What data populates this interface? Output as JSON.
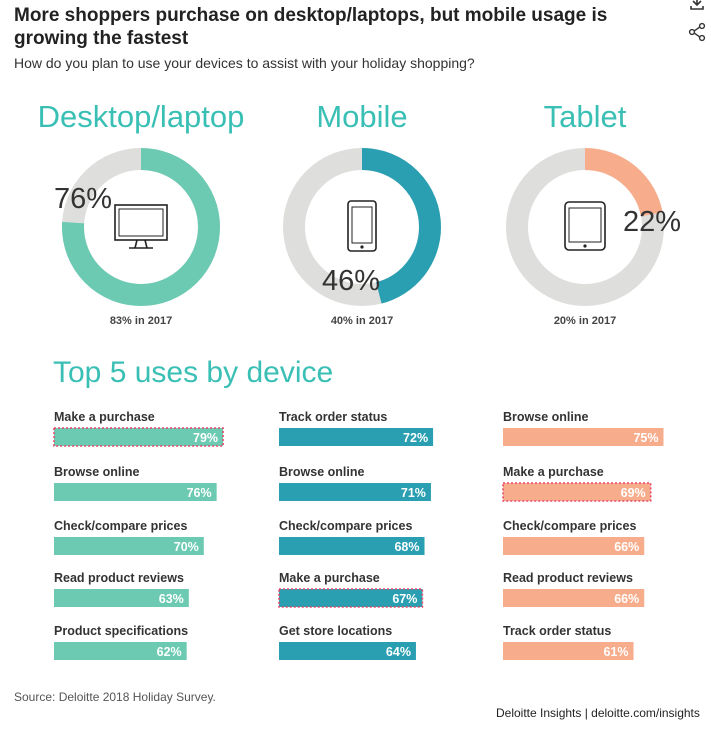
{
  "header": {
    "title": "More shoppers purchase on desktop/laptops, but mobile usage is growing the fastest",
    "subtitle": "How do you plan to use your devices to assist with your holiday shopping?",
    "icons": [
      "download-icon",
      "share-icon"
    ]
  },
  "colors": {
    "desktop": "#6ccab2",
    "mobile": "#2a9fb2",
    "tablet": "#f7ad8c",
    "donut_track": "#dededc",
    "heading": "#3abfb5",
    "highlight_outline": "#e8476a"
  },
  "chart_data": [
    {
      "type": "pie",
      "variant": "donut",
      "title": "Desktop/laptop",
      "value": 76,
      "value_label": "76%",
      "note": "83% in 2017",
      "icon": "desktop-monitor-icon",
      "color": "#6ccab2"
    },
    {
      "type": "pie",
      "variant": "donut",
      "title": "Mobile",
      "value": 46,
      "value_label": "46%",
      "note": "40% in 2017",
      "icon": "smartphone-icon",
      "color": "#2a9fb2"
    },
    {
      "type": "pie",
      "variant": "donut",
      "title": "Tablet",
      "value": 22,
      "value_label": "22%",
      "note": "20% in 2017",
      "icon": "tablet-icon",
      "color": "#f7ad8c"
    },
    {
      "type": "bar",
      "orientation": "horizontal",
      "title": "Top 5 uses by device",
      "xlim": [
        0,
        100
      ],
      "panels": [
        {
          "device": "Desktop/laptop",
          "color": "#6ccab2",
          "categories": [
            "Make a purchase",
            "Browse online",
            "Check/compare prices",
            "Read product reviews",
            "Product specifications"
          ],
          "values": [
            79,
            76,
            70,
            63,
            62
          ],
          "labels": [
            "79%",
            "76%",
            "70%",
            "63%",
            "62%"
          ],
          "highlight": [
            true,
            false,
            false,
            false,
            false
          ]
        },
        {
          "device": "Mobile",
          "color": "#2a9fb2",
          "categories": [
            "Track order status",
            "Browse online",
            "Check/compare prices",
            "Make a purchase",
            "Get store locations"
          ],
          "values": [
            72,
            71,
            68,
            67,
            64
          ],
          "labels": [
            "72%",
            "71%",
            "68%",
            "67%",
            "64%"
          ],
          "highlight": [
            false,
            false,
            false,
            true,
            false
          ]
        },
        {
          "device": "Tablet",
          "color": "#f7ad8c",
          "categories": [
            "Browse online",
            "Make a purchase",
            "Check/compare prices",
            "Read product reviews",
            "Track order status"
          ],
          "values": [
            75,
            69,
            66,
            66,
            61
          ],
          "labels": [
            "75%",
            "69%",
            "66%",
            "66%",
            "61%"
          ],
          "highlight": [
            false,
            true,
            false,
            false,
            false
          ]
        }
      ]
    }
  ],
  "footer": {
    "source": "Source: Deloitte 2018 Holiday Survey.",
    "credit": "Deloitte Insights | deloitte.com/insights"
  }
}
